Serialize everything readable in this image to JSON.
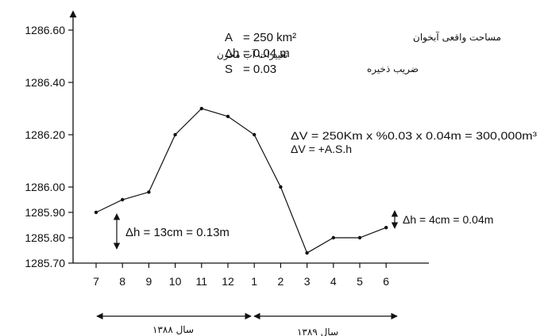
{
  "chart_data": {
    "type": "line",
    "categories": [
      "7",
      "8",
      "9",
      "10",
      "11",
      "12",
      "1",
      "2",
      "3",
      "4",
      "5",
      "6"
    ],
    "series": [
      {
        "values": [
          1285.9,
          1285.95,
          1285.98,
          1286.2,
          1286.3,
          1286.27,
          1286.2,
          1286.0,
          1285.74,
          1285.8,
          1285.8,
          1285.84
        ]
      }
    ],
    "y_ticks": [
      "1286.60",
      "1286.40",
      "1286.20",
      "1286.00",
      "1285.90",
      "1285.80",
      "1285.70"
    ],
    "ylim": [
      1285.7,
      1286.6
    ],
    "grid": false,
    "annotations": {
      "params": [
        {
          "symbol": "A",
          "value": "= 250 km²",
          "label_fa": "مساحت واقعی آبخوان"
        },
        {
          "symbol": "Δh",
          "value": "= 0.04 m",
          "label_fa": "تغییرات آب مخزن"
        },
        {
          "symbol": "S",
          "value": "= 0.03",
          "label_fa": "ضریب ذخیره"
        }
      ],
      "formula_1": "ΔV = 250Km x %0.03 x 0.04m = 300,000m³",
      "formula_2": "ΔV = +A.S.h",
      "delta_left": "Δh = 13cm = 0.13m",
      "delta_right": "Δh = 4cm = 0.04m",
      "year_1": "سال ۱۳۸۸",
      "year_2": "سال ۱۳۸۹"
    }
  }
}
